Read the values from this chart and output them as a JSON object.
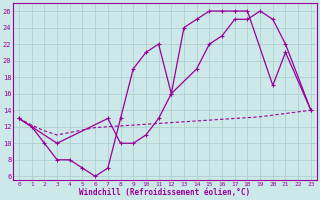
{
  "xlabel": "Windchill (Refroidissement éolien,°C)",
  "background_color": "#cce8e8",
  "grid_color": "#aacccc",
  "line_color": "#990099",
  "xlim": [
    -0.5,
    23.5
  ],
  "ylim": [
    5.5,
    27
  ],
  "xticks": [
    0,
    1,
    2,
    3,
    4,
    5,
    6,
    7,
    8,
    9,
    10,
    11,
    12,
    13,
    14,
    15,
    16,
    17,
    18,
    19,
    20,
    21,
    22,
    23
  ],
  "yticks": [
    6,
    8,
    10,
    12,
    14,
    16,
    18,
    20,
    22,
    24,
    26
  ],
  "series1_x": [
    0,
    1,
    2,
    3,
    4,
    5,
    6,
    7,
    8,
    9,
    10,
    11,
    12,
    13,
    14,
    15,
    16,
    17,
    18,
    20,
    21,
    23
  ],
  "series1_y": [
    13,
    12,
    10,
    8,
    8,
    7,
    6,
    7,
    13,
    19,
    21,
    22,
    16,
    24,
    25,
    26,
    26,
    26,
    26,
    17,
    21,
    14
  ],
  "series2_x": [
    0,
    3,
    7,
    8,
    9,
    10,
    11,
    12,
    14,
    15,
    16,
    17,
    18,
    19,
    20,
    21,
    23
  ],
  "series2_y": [
    13,
    10,
    13,
    10,
    10,
    11,
    13,
    16,
    19,
    22,
    23,
    25,
    25,
    26,
    25,
    22,
    14
  ],
  "series3_x": [
    0,
    1,
    2,
    3,
    4,
    5,
    6,
    7,
    8,
    9,
    10,
    11,
    12,
    13,
    14,
    15,
    16,
    17,
    18,
    19,
    20,
    21,
    22,
    23
  ],
  "series3_y": [
    13,
    12.2,
    11.5,
    11,
    11.3,
    11.6,
    11.9,
    12,
    12.1,
    12.2,
    12.3,
    12.4,
    12.5,
    12.6,
    12.7,
    12.8,
    12.9,
    13,
    13.1,
    13.2,
    13.4,
    13.6,
    13.8,
    14
  ]
}
